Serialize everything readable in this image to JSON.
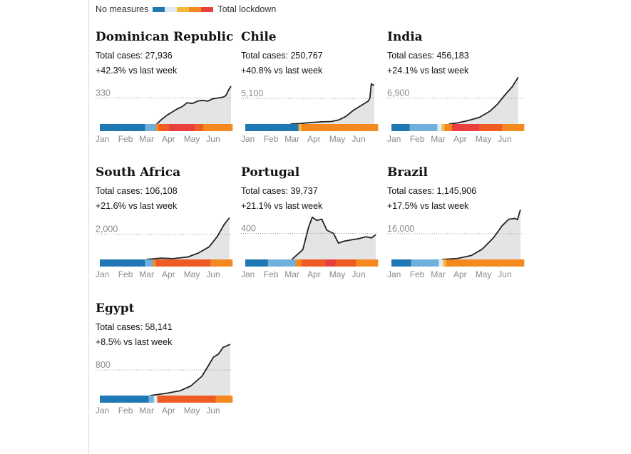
{
  "legend": {
    "left_label": "No measures",
    "right_label": "Total lockdown",
    "scale_colors": [
      "#1f78b4",
      "#dfeaf2",
      "#f5b83d",
      "#f4891f",
      "#e8413d"
    ]
  },
  "colors": {
    "none": "#1f78b4",
    "l1": "#6fb0dc",
    "l2": "#dfeaf2",
    "l3": "#f5b83d",
    "l4": "#f4891f",
    "l5": "#ee5c23",
    "l6": "#e8413d",
    "line": "#222222",
    "bars": "#e4e4e4",
    "ref": "#999999"
  },
  "months": [
    "Jan",
    "Feb",
    "Mar",
    "Apr",
    "May",
    "Jun"
  ],
  "chart_data": [
    {
      "type": "area",
      "title": "Dominican Republic",
      "total_cases_text": "Total cases: 27,936",
      "change_text": "+42.3% vs last week",
      "ref_label": "330",
      "ref_value": 330,
      "ymax": 560,
      "x_range": [
        "2020-01-01",
        "2020-07-01"
      ],
      "series": [
        {
          "x": "2020-03-19",
          "y": 0
        },
        {
          "x": "2020-03-26",
          "y": 60
        },
        {
          "x": "2020-04-02",
          "y": 110
        },
        {
          "x": "2020-04-09",
          "y": 150
        },
        {
          "x": "2020-04-16",
          "y": 190
        },
        {
          "x": "2020-04-23",
          "y": 220
        },
        {
          "x": "2020-04-30",
          "y": 270
        },
        {
          "x": "2020-05-07",
          "y": 260
        },
        {
          "x": "2020-05-14",
          "y": 290
        },
        {
          "x": "2020-05-21",
          "y": 300
        },
        {
          "x": "2020-05-28",
          "y": 290
        },
        {
          "x": "2020-06-04",
          "y": 320
        },
        {
          "x": "2020-06-11",
          "y": 330
        },
        {
          "x": "2020-06-18",
          "y": 340
        },
        {
          "x": "2020-06-22",
          "y": 360
        },
        {
          "x": "2020-06-25",
          "y": 420
        },
        {
          "x": "2020-06-29",
          "y": 480
        }
      ],
      "stringency": [
        {
          "from": "2020-01-01",
          "to": "2020-03-03",
          "level": "none"
        },
        {
          "from": "2020-03-03",
          "to": "2020-03-18",
          "level": "l1"
        },
        {
          "from": "2020-03-18",
          "to": "2020-03-22",
          "level": "l4"
        },
        {
          "from": "2020-03-22",
          "to": "2020-04-05",
          "level": "l5"
        },
        {
          "from": "2020-04-05",
          "to": "2020-05-10",
          "level": "l6"
        },
        {
          "from": "2020-05-10",
          "to": "2020-05-22",
          "level": "l5"
        },
        {
          "from": "2020-05-22",
          "to": "2020-07-01",
          "level": "l4"
        }
      ]
    },
    {
      "type": "area",
      "title": "Chile",
      "total_cases_text": "Total cases: 250,767",
      "change_text": "+40.8% vs last week",
      "ref_label": "5,100",
      "ref_value": 5100,
      "ymax": 8800,
      "x_range": [
        "2020-01-01",
        "2020-07-01"
      ],
      "series": [
        {
          "x": "2020-03-03",
          "y": 0
        },
        {
          "x": "2020-03-17",
          "y": 100
        },
        {
          "x": "2020-03-31",
          "y": 300
        },
        {
          "x": "2020-04-14",
          "y": 430
        },
        {
          "x": "2020-04-28",
          "y": 500
        },
        {
          "x": "2020-05-08",
          "y": 800
        },
        {
          "x": "2020-05-18",
          "y": 1500
        },
        {
          "x": "2020-05-28",
          "y": 2700
        },
        {
          "x": "2020-06-07",
          "y": 3600
        },
        {
          "x": "2020-06-14",
          "y": 4200
        },
        {
          "x": "2020-06-18",
          "y": 4600
        },
        {
          "x": "2020-06-20",
          "y": 5200
        },
        {
          "x": "2020-06-22",
          "y": 8000
        },
        {
          "x": "2020-06-24",
          "y": 7800
        },
        {
          "x": "2020-06-26",
          "y": 7700
        }
      ],
      "stringency": [
        {
          "from": "2020-01-01",
          "to": "2020-03-14",
          "level": "none"
        },
        {
          "from": "2020-03-14",
          "to": "2020-03-18",
          "level": "l3"
        },
        {
          "from": "2020-03-18",
          "to": "2020-07-01",
          "level": "l4"
        }
      ]
    },
    {
      "type": "area",
      "title": "India",
      "total_cases_text": "Total cases: 456,183",
      "change_text": "+24.1% vs last week",
      "ref_label": "6,900",
      "ref_value": 6900,
      "ymax": 11800,
      "x_range": [
        "2020-01-01",
        "2020-07-01"
      ],
      "series": [
        {
          "x": "2020-03-20",
          "y": 0
        },
        {
          "x": "2020-04-01",
          "y": 300
        },
        {
          "x": "2020-04-15",
          "y": 900
        },
        {
          "x": "2020-05-01",
          "y": 1800
        },
        {
          "x": "2020-05-15",
          "y": 3400
        },
        {
          "x": "2020-05-25",
          "y": 5200
        },
        {
          "x": "2020-06-05",
          "y": 7800
        },
        {
          "x": "2020-06-15",
          "y": 10000
        },
        {
          "x": "2020-06-23",
          "y": 12500
        }
      ],
      "stringency": [
        {
          "from": "2020-01-01",
          "to": "2020-01-26",
          "level": "none"
        },
        {
          "from": "2020-01-26",
          "to": "2020-03-04",
          "level": "l1"
        },
        {
          "from": "2020-03-04",
          "to": "2020-03-10",
          "level": "l2"
        },
        {
          "from": "2020-03-10",
          "to": "2020-03-14",
          "level": "l3"
        },
        {
          "from": "2020-03-14",
          "to": "2020-03-24",
          "level": "l4"
        },
        {
          "from": "2020-03-24",
          "to": "2020-05-01",
          "level": "l6"
        },
        {
          "from": "2020-05-01",
          "to": "2020-06-01",
          "level": "l5"
        },
        {
          "from": "2020-06-01",
          "to": "2020-07-01",
          "level": "l4"
        }
      ]
    },
    {
      "type": "area",
      "title": "South Africa",
      "total_cases_text": "Total cases: 106,108",
      "change_text": "+21.6% vs last week",
      "ref_label": "2,000",
      "ref_value": 2000,
      "ymax": 3500,
      "x_range": [
        "2020-01-01",
        "2020-07-01"
      ],
      "series": [
        {
          "x": "2020-03-05",
          "y": 0
        },
        {
          "x": "2020-03-25",
          "y": 100
        },
        {
          "x": "2020-04-10",
          "y": 60
        },
        {
          "x": "2020-05-01",
          "y": 200
        },
        {
          "x": "2020-05-15",
          "y": 500
        },
        {
          "x": "2020-05-30",
          "y": 1000
        },
        {
          "x": "2020-06-10",
          "y": 1800
        },
        {
          "x": "2020-06-20",
          "y": 2800
        },
        {
          "x": "2020-06-27",
          "y": 3300
        }
      ],
      "stringency": [
        {
          "from": "2020-01-01",
          "to": "2020-03-03",
          "level": "none"
        },
        {
          "from": "2020-03-03",
          "to": "2020-03-14",
          "level": "l1"
        },
        {
          "from": "2020-03-14",
          "to": "2020-03-18",
          "level": "l4"
        },
        {
          "from": "2020-03-18",
          "to": "2020-06-01",
          "level": "l5"
        },
        {
          "from": "2020-06-01",
          "to": "2020-07-01",
          "level": "l4"
        }
      ]
    },
    {
      "type": "area",
      "title": "Portugal",
      "total_cases_text": "Total cases: 39,737",
      "change_text": "+21.1% vs last week",
      "ref_label": "400",
      "ref_value": 400,
      "ymax": 680,
      "x_range": [
        "2020-01-01",
        "2020-07-01"
      ],
      "series": [
        {
          "x": "2020-03-05",
          "y": 0
        },
        {
          "x": "2020-03-20",
          "y": 150
        },
        {
          "x": "2020-03-28",
          "y": 500
        },
        {
          "x": "2020-04-02",
          "y": 650
        },
        {
          "x": "2020-04-08",
          "y": 600
        },
        {
          "x": "2020-04-15",
          "y": 620
        },
        {
          "x": "2020-04-22",
          "y": 450
        },
        {
          "x": "2020-05-01",
          "y": 400
        },
        {
          "x": "2020-05-08",
          "y": 250
        },
        {
          "x": "2020-05-15",
          "y": 280
        },
        {
          "x": "2020-05-25",
          "y": 300
        },
        {
          "x": "2020-06-05",
          "y": 320
        },
        {
          "x": "2020-06-15",
          "y": 350
        },
        {
          "x": "2020-06-22",
          "y": 330
        },
        {
          "x": "2020-06-28",
          "y": 380
        }
      ],
      "stringency": [
        {
          "from": "2020-01-01",
          "to": "2020-02-01",
          "level": "none"
        },
        {
          "from": "2020-02-01",
          "to": "2020-03-10",
          "level": "l1"
        },
        {
          "from": "2020-03-10",
          "to": "2020-03-18",
          "level": "l4"
        },
        {
          "from": "2020-03-18",
          "to": "2020-04-20",
          "level": "l5"
        },
        {
          "from": "2020-04-20",
          "to": "2020-05-04",
          "level": "l6"
        },
        {
          "from": "2020-05-04",
          "to": "2020-06-01",
          "level": "l5"
        },
        {
          "from": "2020-06-01",
          "to": "2020-07-01",
          "level": "l4"
        }
      ]
    },
    {
      "type": "area",
      "title": "Brazil",
      "total_cases_text": "Total cases: 1,145,906",
      "change_text": "+17.5% vs last week",
      "ref_label": "16,000",
      "ref_value": 16000,
      "ymax": 27500,
      "x_range": [
        "2020-01-01",
        "2020-07-01"
      ],
      "series": [
        {
          "x": "2020-03-10",
          "y": 0
        },
        {
          "x": "2020-04-01",
          "y": 600
        },
        {
          "x": "2020-04-20",
          "y": 2500
        },
        {
          "x": "2020-05-05",
          "y": 6500
        },
        {
          "x": "2020-05-20",
          "y": 13500
        },
        {
          "x": "2020-06-01",
          "y": 21000
        },
        {
          "x": "2020-06-10",
          "y": 25000
        },
        {
          "x": "2020-06-18",
          "y": 25500
        },
        {
          "x": "2020-06-22",
          "y": 24800
        },
        {
          "x": "2020-06-26",
          "y": 31000
        }
      ],
      "stringency": [
        {
          "from": "2020-01-01",
          "to": "2020-01-28",
          "level": "none"
        },
        {
          "from": "2020-01-28",
          "to": "2020-03-06",
          "level": "l1"
        },
        {
          "from": "2020-03-06",
          "to": "2020-03-12",
          "level": "l2"
        },
        {
          "from": "2020-03-12",
          "to": "2020-03-16",
          "level": "l3"
        },
        {
          "from": "2020-03-16",
          "to": "2020-07-01",
          "level": "l4"
        }
      ]
    },
    {
      "type": "area",
      "title": "Egypt",
      "total_cases_text": "Total cases: 58,141",
      "change_text": "+8.5% vs last week",
      "ref_label": "800",
      "ref_value": 800,
      "ymax": 1380,
      "x_range": [
        "2020-01-01",
        "2020-07-01"
      ],
      "series": [
        {
          "x": "2020-03-10",
          "y": 0
        },
        {
          "x": "2020-04-01",
          "y": 70
        },
        {
          "x": "2020-04-20",
          "y": 150
        },
        {
          "x": "2020-05-05",
          "y": 300
        },
        {
          "x": "2020-05-20",
          "y": 600
        },
        {
          "x": "2020-05-28",
          "y": 900
        },
        {
          "x": "2020-06-05",
          "y": 1200
        },
        {
          "x": "2020-06-12",
          "y": 1300
        },
        {
          "x": "2020-06-18",
          "y": 1500
        },
        {
          "x": "2020-06-28",
          "y": 1600
        }
      ],
      "stringency": [
        {
          "from": "2020-01-01",
          "to": "2020-03-08",
          "level": "none"
        },
        {
          "from": "2020-03-08",
          "to": "2020-03-15",
          "level": "l1"
        },
        {
          "from": "2020-03-15",
          "to": "2020-03-20",
          "level": "l2"
        },
        {
          "from": "2020-03-20",
          "to": "2020-06-08",
          "level": "l5"
        },
        {
          "from": "2020-06-08",
          "to": "2020-07-01",
          "level": "l4"
        }
      ]
    }
  ]
}
